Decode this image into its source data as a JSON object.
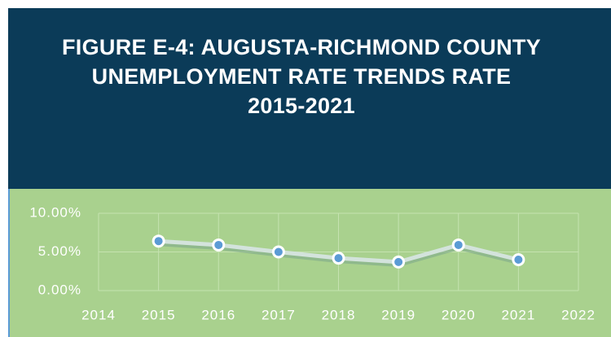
{
  "chart_data": {
    "type": "line",
    "title": "FIGURE E-4: AUGUSTA-RICHMOND COUNTY UNEMPLOYMENT RATE TRENDS RATE 2015-2021",
    "x": [
      2015,
      2016,
      2017,
      2018,
      2019,
      2020,
      2021
    ],
    "series": [
      {
        "name": "Unemployment Rate",
        "color": "#5b9bd5",
        "values": [
          6.4,
          5.9,
          5.0,
          4.2,
          3.7,
          5.9,
          4.0
        ]
      }
    ],
    "xlim": [
      2014,
      2022
    ],
    "xticks": [
      2014,
      2015,
      2016,
      2017,
      2018,
      2019,
      2020,
      2021,
      2022
    ],
    "ylim": [
      0,
      10
    ],
    "yticks": [
      {
        "value": 0,
        "label": "0.00%"
      },
      {
        "value": 5,
        "label": "5.00%"
      },
      {
        "value": 10,
        "label": "10.00%"
      }
    ],
    "grid": true
  }
}
